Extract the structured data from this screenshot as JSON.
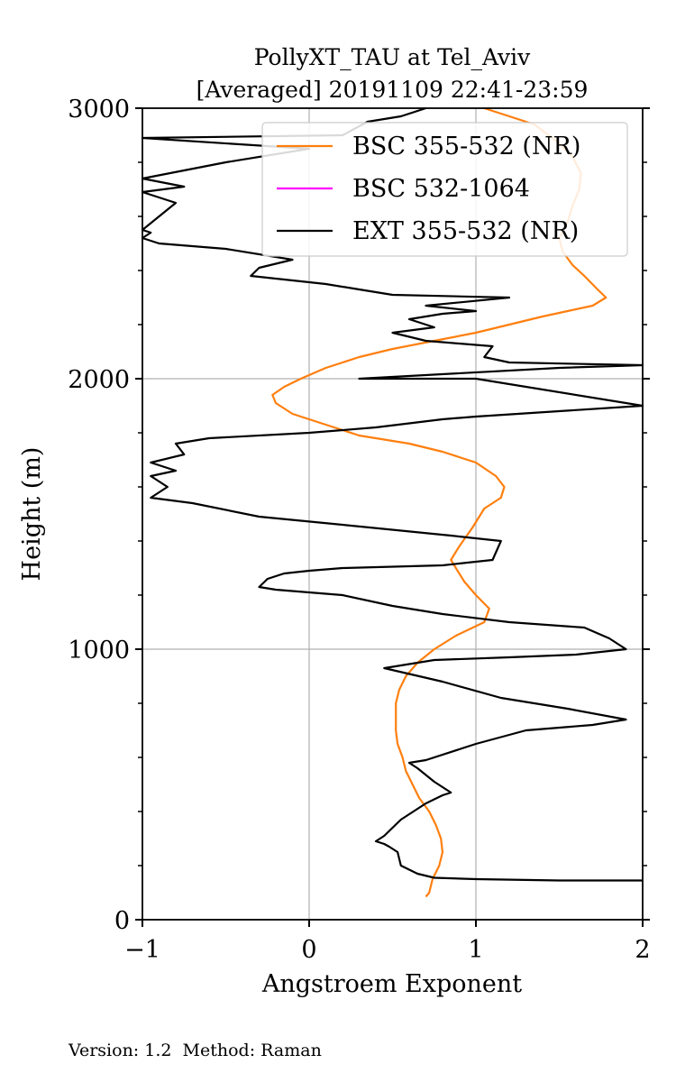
{
  "chart_data": {
    "type": "line",
    "title_line1": "PollyXT_TAU at Tel_Aviv",
    "title_line2": "[Averaged] 20191109 22:41-23:59",
    "xlabel": "Angstroem Exponent",
    "ylabel": "Height (m)",
    "xlim": [
      -1,
      2
    ],
    "ylim": [
      0,
      3000
    ],
    "xticks": [
      -1,
      0,
      1,
      2
    ],
    "xtick_labels": [
      "−1",
      "0",
      "1",
      "2"
    ],
    "yticks": [
      0,
      1000,
      2000,
      3000
    ],
    "ytick_labels": [
      "0",
      "1000",
      "2000",
      "3000"
    ],
    "grid": true,
    "legend_position": "top-right",
    "series": [
      {
        "name": "BSC 355-532 (NR)",
        "color": "#ff7f0e",
        "points": [
          [
            0.7,
            85
          ],
          [
            0.72,
            100
          ],
          [
            0.74,
            150
          ],
          [
            0.78,
            200
          ],
          [
            0.8,
            250
          ],
          [
            0.79,
            300
          ],
          [
            0.76,
            350
          ],
          [
            0.72,
            400
          ],
          [
            0.66,
            450
          ],
          [
            0.62,
            500
          ],
          [
            0.58,
            550
          ],
          [
            0.56,
            600
          ],
          [
            0.53,
            650
          ],
          [
            0.52,
            700
          ],
          [
            0.52,
            750
          ],
          [
            0.52,
            800
          ],
          [
            0.54,
            850
          ],
          [
            0.58,
            900
          ],
          [
            0.65,
            950
          ],
          [
            0.75,
            1000
          ],
          [
            0.88,
            1050
          ],
          [
            1.05,
            1100
          ],
          [
            1.08,
            1150
          ],
          [
            1.0,
            1200
          ],
          [
            0.93,
            1250
          ],
          [
            0.88,
            1300
          ],
          [
            0.85,
            1330
          ],
          [
            0.9,
            1380
          ],
          [
            0.98,
            1450
          ],
          [
            1.05,
            1520
          ],
          [
            1.15,
            1560
          ],
          [
            1.17,
            1600
          ],
          [
            1.12,
            1640
          ],
          [
            1.0,
            1690
          ],
          [
            0.8,
            1730
          ],
          [
            0.6,
            1760
          ],
          [
            0.3,
            1790
          ],
          [
            0.1,
            1830
          ],
          [
            -0.1,
            1870
          ],
          [
            -0.2,
            1910
          ],
          [
            -0.22,
            1940
          ],
          [
            -0.15,
            1970
          ],
          [
            -0.05,
            2000
          ],
          [
            0.1,
            2040
          ],
          [
            0.3,
            2080
          ],
          [
            0.5,
            2110
          ],
          [
            0.75,
            2140
          ],
          [
            1.0,
            2170
          ],
          [
            1.2,
            2200
          ],
          [
            1.4,
            2230
          ],
          [
            1.55,
            2250
          ],
          [
            1.7,
            2270
          ],
          [
            1.78,
            2300
          ],
          [
            1.73,
            2330
          ],
          [
            1.65,
            2380
          ],
          [
            1.58,
            2420
          ],
          [
            1.52,
            2470
          ],
          [
            1.5,
            2520
          ],
          [
            1.55,
            2580
          ],
          [
            1.58,
            2640
          ],
          [
            1.62,
            2700
          ],
          [
            1.63,
            2760
          ],
          [
            1.58,
            2820
          ],
          [
            1.48,
            2880
          ],
          [
            1.35,
            2940
          ],
          [
            1.15,
            2980
          ],
          [
            1.05,
            3000
          ]
        ]
      },
      {
        "name": "BSC 532-1064",
        "color": "#ff00ff",
        "points": []
      },
      {
        "name": "EXT 355-532 (NR)",
        "color": "#000000",
        "points": [
          [
            2.0,
            145
          ],
          [
            1.5,
            145
          ],
          [
            1.0,
            150
          ],
          [
            0.75,
            155
          ],
          [
            0.65,
            170
          ],
          [
            0.6,
            185
          ],
          [
            0.55,
            200
          ],
          [
            0.53,
            250
          ],
          [
            0.48,
            270
          ],
          [
            0.45,
            280
          ],
          [
            0.4,
            290
          ],
          [
            0.45,
            310
          ],
          [
            0.5,
            340
          ],
          [
            0.55,
            370
          ],
          [
            0.7,
            430
          ],
          [
            0.8,
            460
          ],
          [
            0.85,
            470
          ],
          [
            0.75,
            510
          ],
          [
            0.65,
            560
          ],
          [
            0.6,
            580
          ],
          [
            0.7,
            590
          ],
          [
            1.0,
            650
          ],
          [
            1.3,
            700
          ],
          [
            1.7,
            720
          ],
          [
            1.9,
            740
          ],
          [
            1.55,
            780
          ],
          [
            1.15,
            820
          ],
          [
            0.8,
            880
          ],
          [
            0.45,
            930
          ],
          [
            0.75,
            960
          ],
          [
            1.2,
            970
          ],
          [
            1.6,
            980
          ],
          [
            1.9,
            1000
          ],
          [
            1.8,
            1040
          ],
          [
            1.65,
            1080
          ],
          [
            1.2,
            1100
          ],
          [
            0.8,
            1130
          ],
          [
            0.5,
            1160
          ],
          [
            0.2,
            1200
          ],
          [
            -0.2,
            1220
          ],
          [
            -0.3,
            1230
          ],
          [
            -0.25,
            1260
          ],
          [
            -0.15,
            1280
          ],
          [
            0.0,
            1290
          ],
          [
            0.2,
            1300
          ],
          [
            0.8,
            1310
          ],
          [
            1.1,
            1330
          ],
          [
            1.15,
            1400
          ],
          [
            0.85,
            1420
          ],
          [
            0.2,
            1460
          ],
          [
            -0.3,
            1490
          ],
          [
            -0.7,
            1540
          ],
          [
            -0.95,
            1560
          ],
          [
            -0.85,
            1600
          ],
          [
            -0.95,
            1640
          ],
          [
            -0.8,
            1660
          ],
          [
            -0.95,
            1690
          ],
          [
            -0.75,
            1720
          ],
          [
            -0.8,
            1760
          ],
          [
            -0.6,
            1780
          ],
          [
            0.0,
            1800
          ],
          [
            0.4,
            1820
          ],
          [
            0.8,
            1850
          ],
          [
            1.0,
            1860
          ],
          [
            1.5,
            1880
          ],
          [
            2.0,
            1900
          ],
          [
            1.0,
            2000
          ],
          [
            0.3,
            2000
          ],
          [
            1.5,
            2040
          ],
          [
            2.0,
            2050
          ],
          [
            1.2,
            2060
          ],
          [
            1.05,
            2080
          ],
          [
            1.1,
            2120
          ],
          [
            0.7,
            2140
          ],
          [
            0.5,
            2170
          ],
          [
            0.75,
            2190
          ],
          [
            0.6,
            2220
          ],
          [
            0.8,
            2240
          ],
          [
            1.0,
            2250
          ],
          [
            0.7,
            2270
          ],
          [
            1.2,
            2300
          ],
          [
            0.5,
            2310
          ],
          [
            0.3,
            2330
          ],
          [
            0.1,
            2350
          ],
          [
            -0.35,
            2380
          ],
          [
            -0.3,
            2410
          ],
          [
            -0.1,
            2440
          ],
          [
            -0.5,
            2480
          ],
          [
            -0.9,
            2500
          ],
          [
            -1.0,
            2520
          ],
          [
            -0.95,
            2540
          ],
          [
            -1.0,
            2550
          ],
          [
            -0.8,
            2650
          ],
          [
            -1.0,
            2690
          ],
          [
            -0.75,
            2710
          ],
          [
            -1.0,
            2740
          ],
          [
            -0.5,
            2800
          ],
          [
            0.0,
            2850
          ],
          [
            -1.0,
            2890
          ],
          [
            0.2,
            2900
          ],
          [
            0.35,
            2950
          ],
          [
            0.55,
            2970
          ],
          [
            0.7,
            3000
          ]
        ]
      }
    ]
  },
  "footer": {
    "text": "Version: 1.2  Method: Raman"
  }
}
